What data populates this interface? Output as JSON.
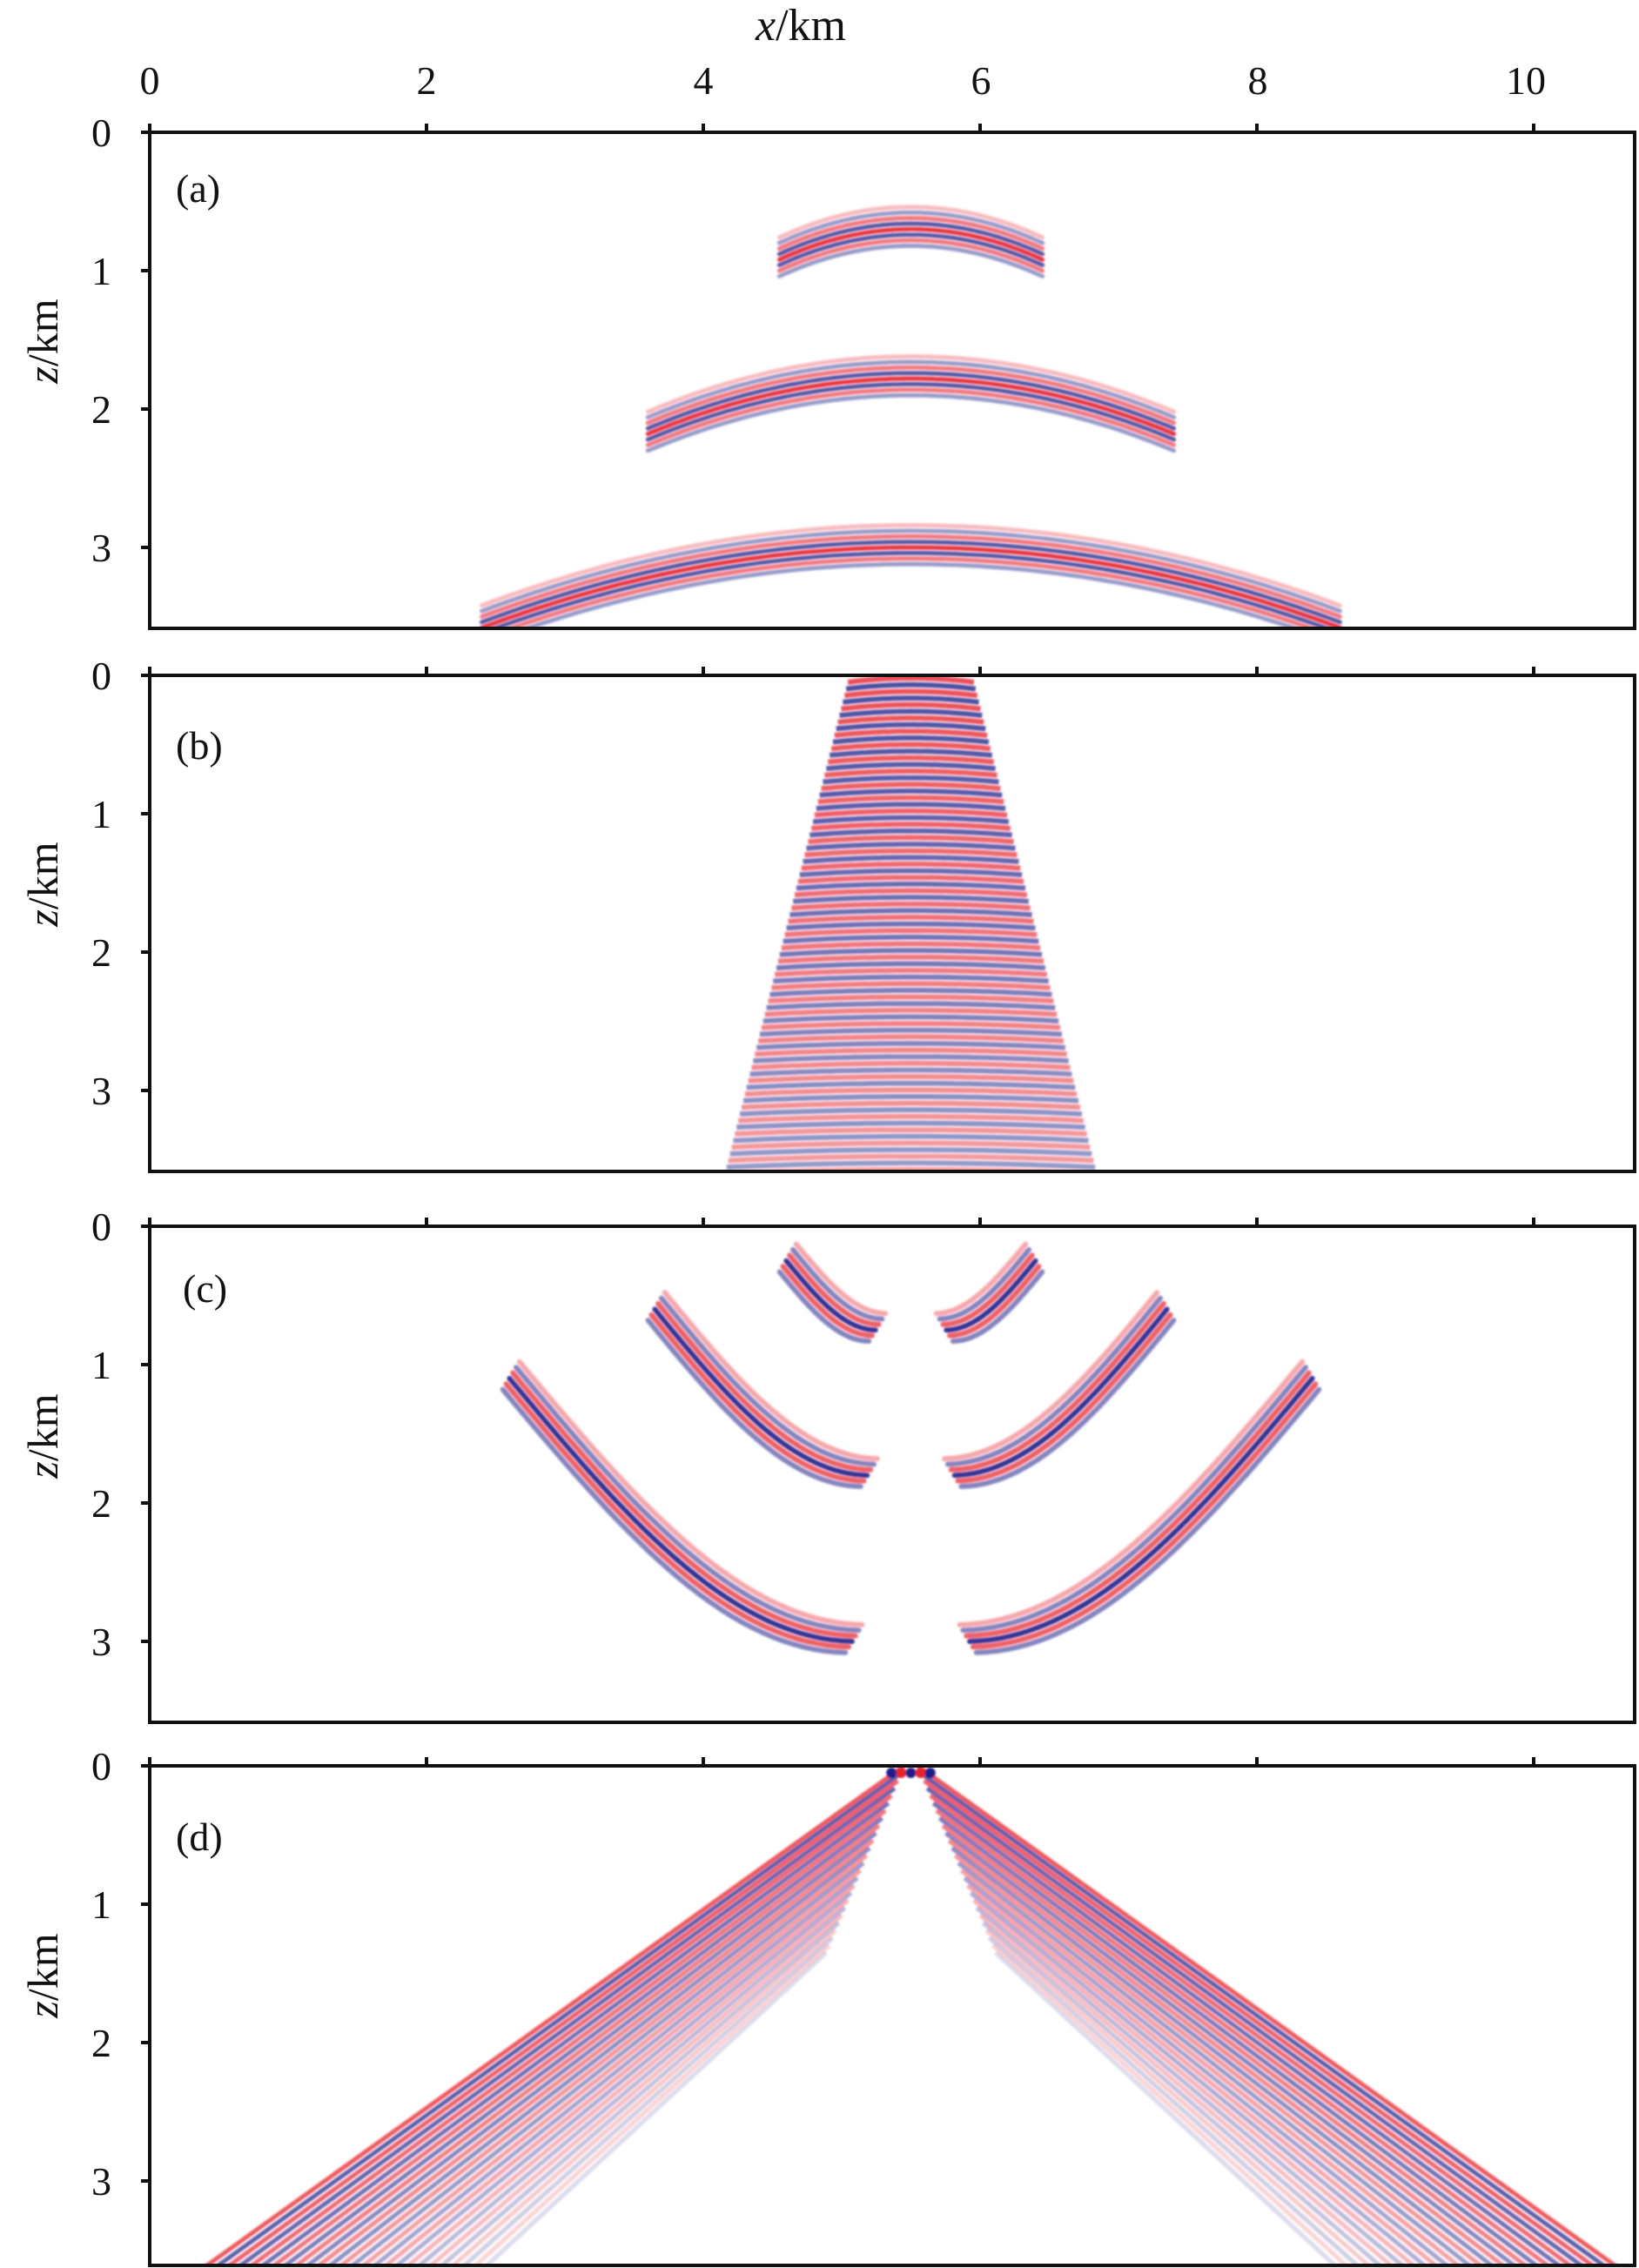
{
  "figure": {
    "x_axis_title_var": "x",
    "x_axis_title_unit": "/km",
    "y_axis_title_var": "z",
    "y_axis_title_unit": "/km",
    "x_ticks": [
      "0",
      "2",
      "4",
      "6",
      "8",
      "10"
    ],
    "y_ticks": [
      "0",
      "1",
      "2",
      "3"
    ]
  },
  "chart_data": [
    {
      "type": "heatmap",
      "panel_label": "(a)",
      "xlabel": "x/km",
      "ylabel": "z/km",
      "xlim": [
        0,
        10.7
      ],
      "ylim": [
        3.6,
        0
      ],
      "x_ticks": [
        0,
        2,
        4,
        6,
        8,
        10
      ],
      "y_ticks": [
        0,
        1,
        2,
        3
      ],
      "colors": {
        "positive": "#e8202a",
        "negative": "#1c1f8a"
      },
      "events": [
        {
          "kind": "arc",
          "x_center": 5.5,
          "z_apex": 0.7,
          "half_width": 0.95,
          "sag": 0.22
        },
        {
          "kind": "arc",
          "x_center": 5.5,
          "z_apex": 1.78,
          "half_width": 1.9,
          "sag": 0.4
        },
        {
          "kind": "arc",
          "x_center": 5.5,
          "z_apex": 3.0,
          "half_width": 3.1,
          "sag": 0.58
        }
      ]
    },
    {
      "type": "heatmap",
      "panel_label": "(b)",
      "xlabel": "x/km",
      "ylabel": "z/km",
      "xlim": [
        0,
        10.7
      ],
      "ylim": [
        3.6,
        0
      ],
      "x_ticks": [
        0,
        2,
        4,
        6,
        8,
        10
      ],
      "y_ticks": [
        0,
        1,
        2,
        3
      ],
      "colors": {
        "positive": "#e8202a",
        "negative": "#1c1f8a"
      },
      "events": [
        {
          "kind": "cone",
          "x_center": 5.5,
          "half_width_top": 0.45,
          "half_width_bottom": 1.35
        }
      ]
    },
    {
      "type": "heatmap",
      "panel_label": "(c)",
      "xlabel": "x/km",
      "ylabel": "z/km",
      "xlim": [
        0,
        10.7
      ],
      "ylim": [
        3.6,
        0
      ],
      "x_ticks": [
        0,
        2,
        4,
        6,
        8,
        10
      ],
      "y_ticks": [
        0,
        1,
        2,
        3
      ],
      "colors": {
        "positive": "#e8202a",
        "negative": "#1c1f8a"
      },
      "events": [
        {
          "kind": "split-arc",
          "x_center": 5.5,
          "x_outer": 4.6,
          "z_top": 0.25,
          "z_bottom": 0.75,
          "x_inner": 5.25
        },
        {
          "kind": "split-arc",
          "x_center": 5.5,
          "x_outer": 3.65,
          "z_top": 0.6,
          "z_bottom": 1.8,
          "x_inner": 5.2
        },
        {
          "kind": "split-arc",
          "x_center": 5.5,
          "x_outer": 2.6,
          "z_top": 1.1,
          "z_bottom": 3.0,
          "x_inner": 5.1
        }
      ]
    },
    {
      "type": "heatmap",
      "panel_label": "(d)",
      "xlabel": "x/km",
      "ylabel": "z/km",
      "xlim": [
        0,
        10.7
      ],
      "ylim": [
        3.6,
        0
      ],
      "x_ticks": [
        0,
        2,
        4,
        6,
        8,
        10
      ],
      "y_ticks": [
        0,
        1,
        2,
        3
      ],
      "colors": {
        "positive": "#e8202a",
        "negative": "#1c1f8a"
      },
      "events": [
        {
          "kind": "v-fan",
          "x_center": 5.5,
          "x_left_bottom": 0.4,
          "x_right_bottom": 10.6
        }
      ]
    }
  ]
}
